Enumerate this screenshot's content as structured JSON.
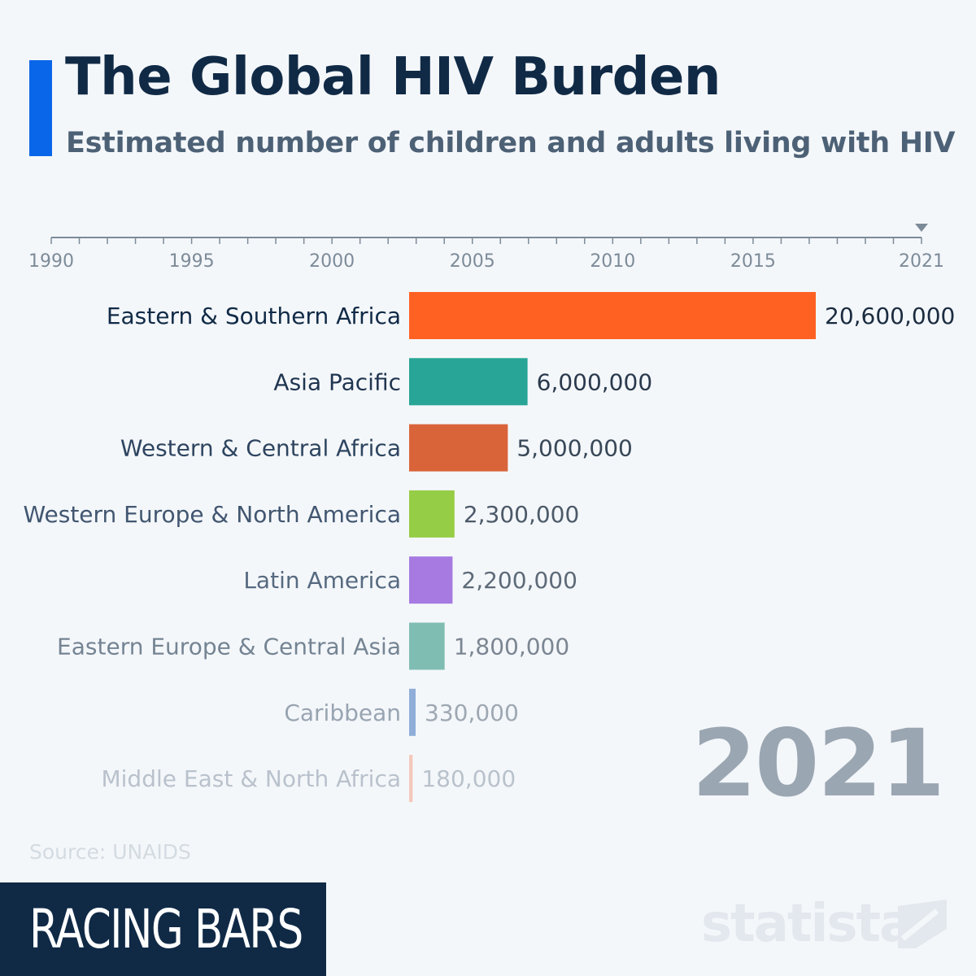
{
  "header": {
    "title": "The Global HIV Burden",
    "subtitle": "Estimated number of children and adults living with HIV"
  },
  "timeline": {
    "start_year": 1990,
    "end_year": 2021,
    "labels": [
      "1990",
      "1995",
      "2000",
      "2005",
      "2010",
      "2015",
      "2021"
    ],
    "current_year": 2021
  },
  "chart_data": {
    "type": "bar",
    "orientation": "horizontal",
    "categories": [
      "Eastern & Southern Africa",
      "Asia Pacific",
      "Western & Central Africa",
      "Western Europe & North America",
      "Latin America",
      "Eastern Europe & Central Asia",
      "Caribbean",
      "Middle East & North Africa"
    ],
    "values": [
      20600000,
      6000000,
      5000000,
      2300000,
      2200000,
      1800000,
      330000,
      180000
    ],
    "value_labels": [
      "20,600,000",
      "6,000,000",
      "5,000,000",
      "2,300,000",
      "2,200,000",
      "1,800,000",
      "330,000",
      "180,000"
    ],
    "colors": [
      "#ff6123",
      "#28a596",
      "#d9643a",
      "#96cd46",
      "#a67ae0",
      "#7fbdb3",
      "#8eaed8",
      "#f3c9bb"
    ],
    "title": "The Global HIV Burden",
    "subtitle": "Estimated number of children and adults living with HIV",
    "year_label": "2021",
    "grid": false,
    "legend": "none"
  },
  "footer": {
    "source": "Source: UNAIDS",
    "badge": "RACING BARS",
    "logo": "statista"
  },
  "colors": {
    "accent": "#0a66e8",
    "navy": "#102a46",
    "background": "#f4f7fa"
  }
}
